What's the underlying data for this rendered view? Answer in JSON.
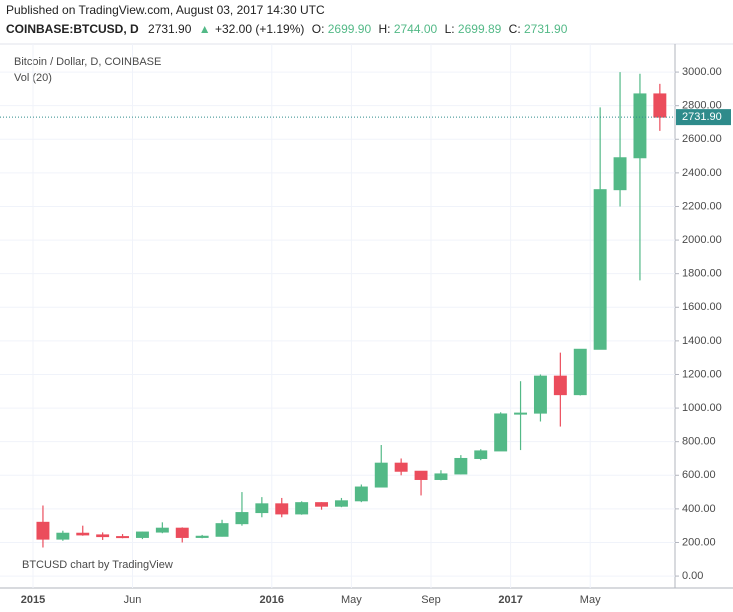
{
  "chart_data": {
    "type": "candlestick",
    "published": "Published on TradingView.com, August 03, 2017 14:30 UTC",
    "quote": {
      "symbol": "COINBASE:BTCUSD, D",
      "last": "2731.90",
      "arrow": "▲",
      "change": "+32.00 (+1.19%)",
      "open_label": "O:",
      "open": "2699.90",
      "high_label": "H:",
      "high": "2744.00",
      "low_label": "L:",
      "low": "2699.89",
      "close_label": "C:",
      "close": "2731.90",
      "up_color": "#53b987"
    },
    "volume_label": "Vol (20)",
    "watermark": "BTCUSD chart by TradingView",
    "categories": [
      "2015",
      null,
      null,
      null,
      null,
      "Jun",
      null,
      null,
      null,
      null,
      null,
      null,
      "2016",
      null,
      null,
      null,
      "May",
      null,
      null,
      null,
      "Sep",
      null,
      null,
      null,
      "2017",
      null,
      null,
      null,
      "May",
      null,
      null,
      null
    ],
    "series": [
      {
        "name": "Bitcoin / Dollar, D, COINBASE",
        "up_color": "#53b987",
        "down_color": "#eb4d5c",
        "open": [
          320,
          220,
          255,
          245,
          235,
          230,
          262,
          285,
          230,
          237,
          312,
          378,
          430,
          370,
          437,
          416,
          448,
          530,
          672,
          624,
          575,
          608,
          700,
          745,
          965,
          970,
          1190,
          1080,
          1350,
          2300,
          2490,
          2870
        ],
        "high": [
          420,
          270,
          300,
          260,
          250,
          265,
          320,
          290,
          245,
          335,
          500,
          470,
          465,
          445,
          440,
          465,
          545,
          780,
          700,
          625,
          630,
          720,
          755,
          975,
          1160,
          1200,
          1330,
          1350,
          2790,
          3000,
          2990,
          2930
        ],
        "low": [
          170,
          210,
          240,
          215,
          225,
          220,
          255,
          200,
          225,
          235,
          300,
          350,
          350,
          365,
          395,
          410,
          440,
          530,
          600,
          480,
          570,
          605,
          690,
          745,
          750,
          920,
          890,
          1075,
          1350,
          2200,
          1760,
          2650
        ],
        "close": [
          220,
          255,
          245,
          235,
          230,
          262,
          285,
          230,
          237,
          312,
          378,
          430,
          370,
          437,
          416,
          448,
          530,
          672,
          624,
          575,
          608,
          700,
          745,
          965,
          970,
          1190,
          1080,
          1350,
          2300,
          2490,
          2870,
          2732
        ]
      }
    ],
    "last_price": {
      "value": 2731.9,
      "label": "2731.90"
    },
    "ylim": [
      -71,
      3060
    ],
    "yticks": [
      {
        "value": 0,
        "label": "0.00"
      },
      {
        "value": 200,
        "label": "200.00"
      },
      {
        "value": 400,
        "label": "400.00"
      },
      {
        "value": 600,
        "label": "600.00"
      },
      {
        "value": 800,
        "label": "800.00"
      },
      {
        "value": 1000,
        "label": "1000.00"
      },
      {
        "value": 1200,
        "label": "1200.00"
      },
      {
        "value": 1400,
        "label": "1400.00"
      },
      {
        "value": 1600,
        "label": "1600.00"
      },
      {
        "value": 1800,
        "label": "1800.00"
      },
      {
        "value": 2000,
        "label": "2000.00"
      },
      {
        "value": 2200,
        "label": "2200.00"
      },
      {
        "value": 2400,
        "label": "2400.00"
      },
      {
        "value": 2600,
        "label": "2600.00"
      },
      {
        "value": 2800,
        "label": "2800.00"
      },
      {
        "value": 3000,
        "label": "3000.00"
      }
    ],
    "grid": true
  }
}
